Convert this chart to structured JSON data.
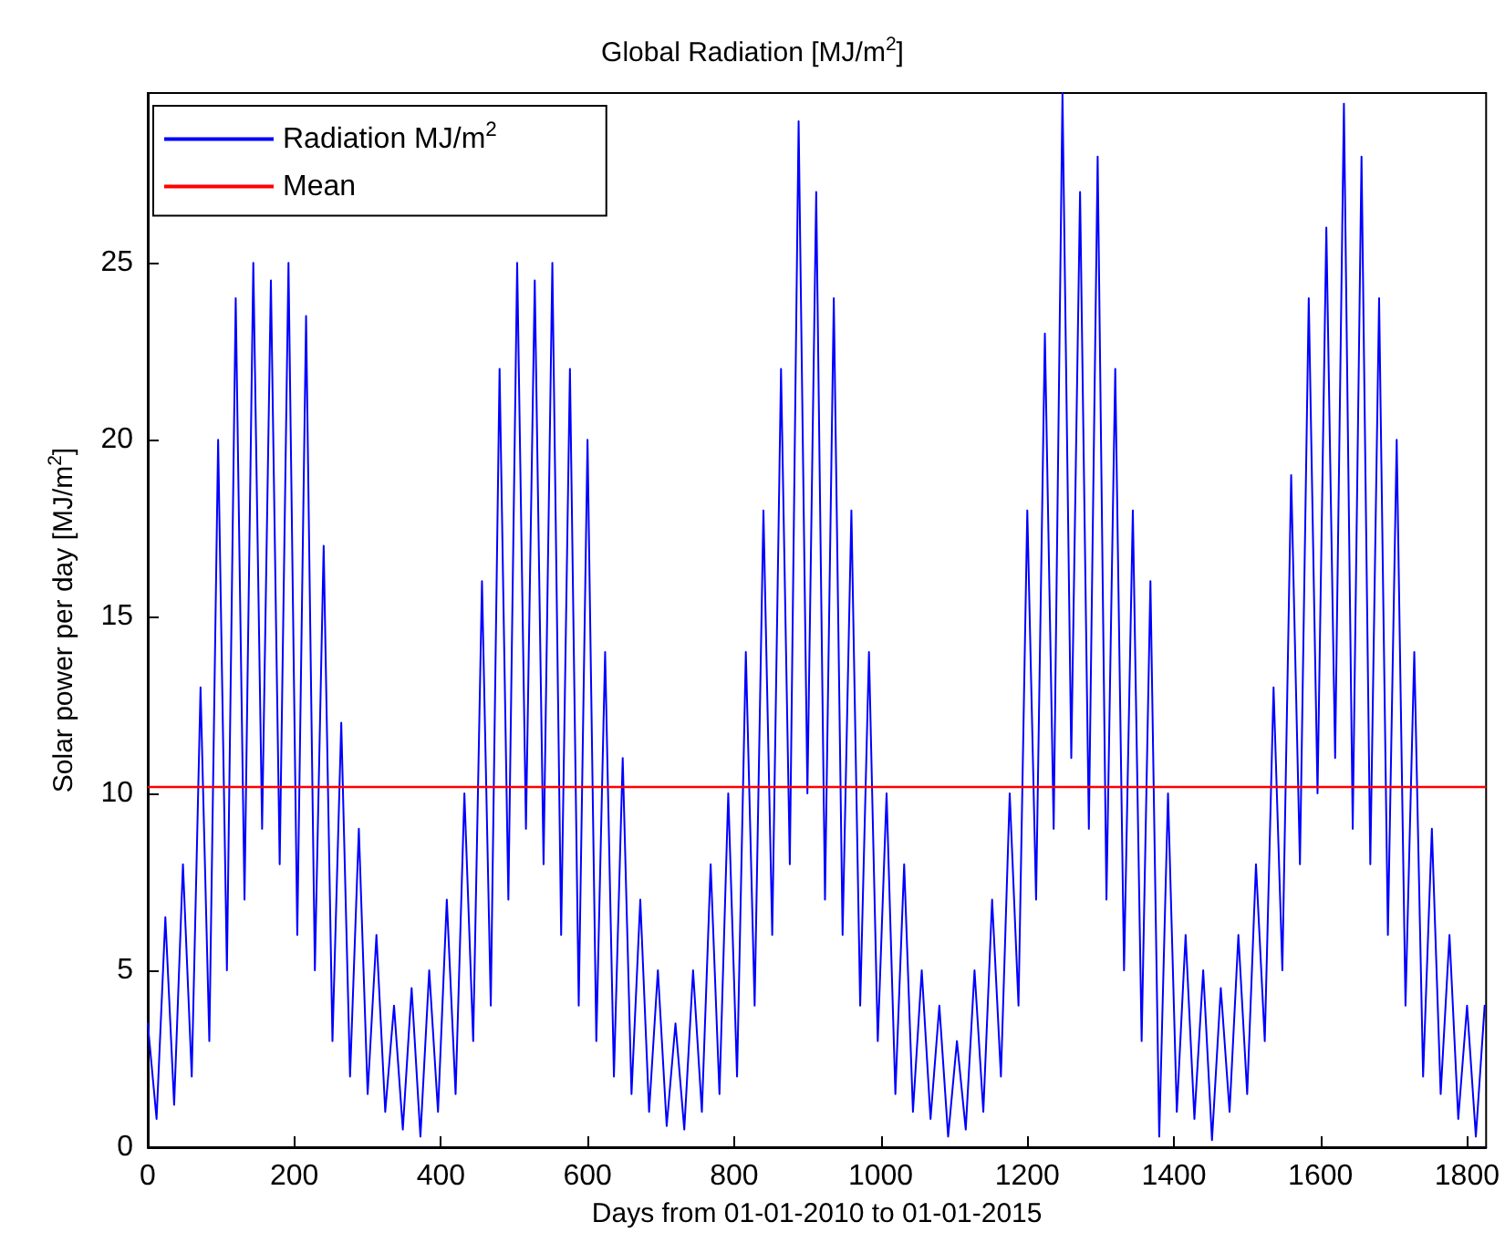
{
  "chart_data": {
    "type": "line",
    "title": "Global Radiation [MJ/m$^{2}$]",
    "xlabel": "Days from 01-01-2010 to 01-01-2015",
    "ylabel": "Solar power per day [MJ/m$^{2}$]",
    "xlim": [
      0,
      1826
    ],
    "xticks": [
      0,
      200,
      400,
      600,
      800,
      1000,
      1200,
      1400,
      1600,
      1800
    ],
    "ylim": [
      0,
      29.8
    ],
    "yticks": [
      0,
      5,
      10,
      15,
      20,
      25
    ],
    "grid": false,
    "legend": "top left",
    "marker": "none",
    "line_style": "solid",
    "series": [
      {
        "name": "Radiation MJ/m$^{2}$",
        "color": "#0000ff",
        "x": [
          0,
          12,
          24,
          36,
          48,
          60,
          72,
          84,
          96,
          108,
          120,
          132,
          144,
          156,
          168,
          180,
          192,
          204,
          216,
          228,
          240,
          252,
          264,
          276,
          288,
          300,
          312,
          324,
          336,
          348,
          360,
          372,
          384,
          396,
          408,
          420,
          432,
          444,
          456,
          468,
          480,
          492,
          504,
          516,
          528,
          540,
          552,
          564,
          576,
          588,
          600,
          612,
          624,
          636,
          648,
          660,
          672,
          684,
          696,
          708,
          720,
          732,
          744,
          756,
          768,
          780,
          792,
          804,
          816,
          828,
          840,
          852,
          864,
          876,
          888,
          900,
          912,
          924,
          936,
          948,
          960,
          972,
          984,
          996,
          1008,
          1020,
          1032,
          1044,
          1056,
          1068,
          1080,
          1092,
          1104,
          1116,
          1128,
          1140,
          1152,
          1164,
          1176,
          1188,
          1200,
          1212,
          1224,
          1236,
          1248,
          1260,
          1272,
          1284,
          1296,
          1308,
          1320,
          1332,
          1344,
          1356,
          1368,
          1380,
          1392,
          1404,
          1416,
          1428,
          1440,
          1452,
          1464,
          1476,
          1488,
          1500,
          1512,
          1524,
          1536,
          1548,
          1560,
          1572,
          1584,
          1596,
          1608,
          1620,
          1632,
          1644,
          1656,
          1668,
          1680,
          1692,
          1704,
          1716,
          1728,
          1740,
          1752,
          1764,
          1776,
          1788,
          1800,
          1812,
          1824
        ],
        "values": [
          3.5,
          0.8,
          6.5,
          1.2,
          8,
          2,
          13,
          3,
          20,
          5,
          24,
          7,
          25,
          9,
          24.5,
          8,
          25,
          6,
          23.5,
          5,
          17,
          3,
          12,
          2,
          9,
          1.5,
          6,
          1,
          4,
          0.5,
          4.5,
          0.3,
          5,
          1,
          7,
          1.5,
          10,
          3,
          16,
          4,
          22,
          7,
          25,
          9,
          24.5,
          8,
          25,
          6,
          22,
          4,
          20,
          3,
          14,
          2,
          11,
          1.5,
          7,
          1,
          5,
          0.6,
          3.5,
          0.5,
          5,
          1,
          8,
          1.5,
          10,
          2,
          14,
          4,
          18,
          6,
          22,
          8,
          29,
          10,
          27,
          7,
          24,
          6,
          18,
          4,
          14,
          3,
          10,
          1.5,
          8,
          1,
          5,
          0.8,
          4,
          0.3,
          3,
          0.5,
          5,
          1,
          7,
          2,
          10,
          4,
          18,
          7,
          23,
          9,
          29.8,
          11,
          27,
          9,
          28,
          7,
          22,
          5,
          18,
          3,
          16,
          0.3,
          10,
          1,
          6,
          0.8,
          5,
          0.2,
          4.5,
          1,
          6,
          1.5,
          8,
          3,
          13,
          5,
          19,
          8,
          24,
          10,
          26,
          11,
          29.5,
          9,
          28,
          8,
          24,
          6,
          20,
          4,
          14,
          2,
          9,
          1.5,
          6,
          0.8,
          4,
          0.3,
          4
        ]
      }
    ],
    "ref_lines": [
      {
        "axis": "y",
        "value": 10.2,
        "label": "Mean",
        "color": "#ff0000",
        "line_style": "solid"
      }
    ]
  }
}
